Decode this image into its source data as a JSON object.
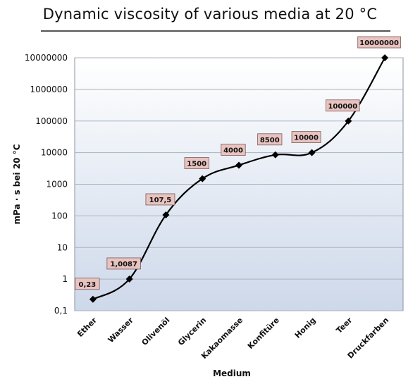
{
  "chart_data": {
    "type": "line",
    "title": "Dynamic viscosity of various media at 20 °C",
    "xlabel": "Medium",
    "ylabel": "mPa · s bei 20 °C",
    "yscale": "log",
    "ylim": [
      0.1,
      10000000
    ],
    "yticks": [
      "0,1",
      "1",
      "10",
      "100",
      "1000",
      "10000",
      "100000",
      "1000000",
      "10000000"
    ],
    "categories": [
      "Ether",
      "Wasser",
      "Olivenöl",
      "Glycerin",
      "Kakaomasse",
      "Konfitüre",
      "Honig",
      "Teer",
      "Druckfarben"
    ],
    "series": [
      {
        "values": [
          0.23,
          1.0087,
          107.5,
          1500,
          4000,
          8500,
          10000,
          100000,
          10000000
        ],
        "labels": [
          "0,23",
          "1,0087",
          "107,5",
          "1500",
          "4000",
          "8500",
          "10000",
          "100000",
          "10000000"
        ]
      }
    ],
    "grid": true,
    "legend": "none",
    "colors": {
      "plot_top": "#ffffff",
      "plot_bottom": "#cdd8ea",
      "gridline": "#aab2bf",
      "line": "#000000",
      "marker": "#000000",
      "label_fill": "#e8c3c0",
      "label_stroke": "#7a5a58"
    }
  }
}
